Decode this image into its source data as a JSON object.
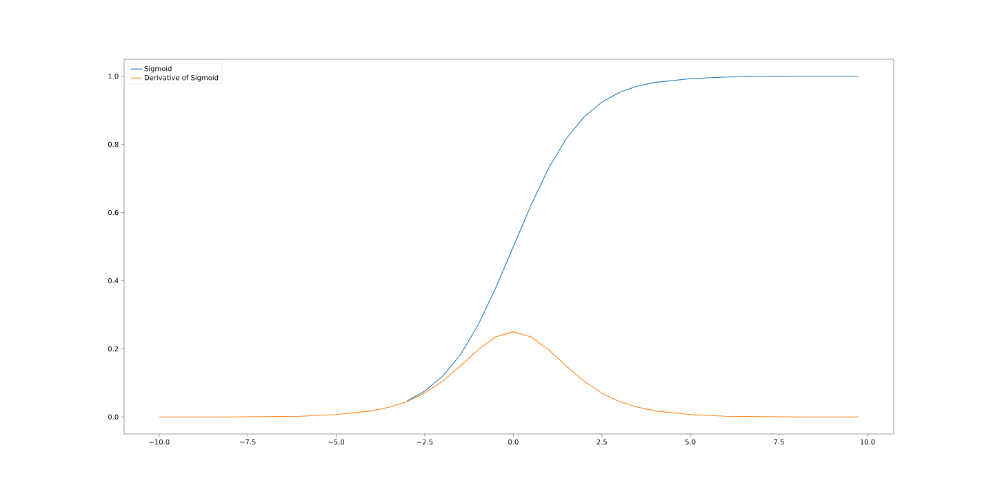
{
  "chart_data": {
    "type": "line",
    "x": [
      -10,
      -8,
      -6,
      -5,
      -4,
      -3.5,
      -3,
      -2.5,
      -2,
      -1.5,
      -1,
      -0.5,
      0,
      0.5,
      1,
      1.5,
      2,
      2.5,
      3,
      3.5,
      4,
      5,
      6,
      8,
      9.75
    ],
    "series": [
      {
        "name": "Sigmoid",
        "color": "#1f77b4",
        "values": [
          null,
          null,
          null,
          null,
          null,
          null,
          0.047,
          0.076,
          0.119,
          0.182,
          0.269,
          0.378,
          0.5,
          0.622,
          0.731,
          0.818,
          0.881,
          0.924,
          0.953,
          0.971,
          0.982,
          0.993,
          0.998,
          1.0,
          1.0
        ]
      },
      {
        "name": "Derivative of Sigmoid",
        "color": "#ff7f0e",
        "values": [
          0.0,
          0.0,
          0.002,
          0.007,
          0.018,
          0.029,
          0.045,
          0.07,
          0.105,
          0.149,
          0.197,
          0.235,
          0.25,
          0.235,
          0.197,
          0.149,
          0.105,
          0.07,
          0.045,
          0.029,
          0.018,
          0.007,
          0.002,
          0.0,
          0.0
        ]
      }
    ],
    "xlim": [
      -10.99,
      10.74
    ],
    "ylim": [
      -0.05,
      1.05
    ],
    "xticks": [
      {
        "value": -10,
        "label": "−10.0"
      },
      {
        "value": -7.5,
        "label": "−7.5"
      },
      {
        "value": -5,
        "label": "−5.0"
      },
      {
        "value": -2.5,
        "label": "−2.5"
      },
      {
        "value": 0,
        "label": "0.0"
      },
      {
        "value": 2.5,
        "label": "2.5"
      },
      {
        "value": 5,
        "label": "5.0"
      },
      {
        "value": 7.5,
        "label": "7.5"
      },
      {
        "value": 10,
        "label": "10.0"
      }
    ],
    "yticks": [
      {
        "value": 0,
        "label": "0.0"
      },
      {
        "value": 0.2,
        "label": "0.2"
      },
      {
        "value": 0.4,
        "label": "0.4"
      },
      {
        "value": 0.6,
        "label": "0.6"
      },
      {
        "value": 0.8,
        "label": "0.8"
      },
      {
        "value": 1.0,
        "label": "1.0"
      }
    ],
    "grid": false,
    "legend": "top left",
    "marker": "none",
    "line_style": "solid"
  }
}
